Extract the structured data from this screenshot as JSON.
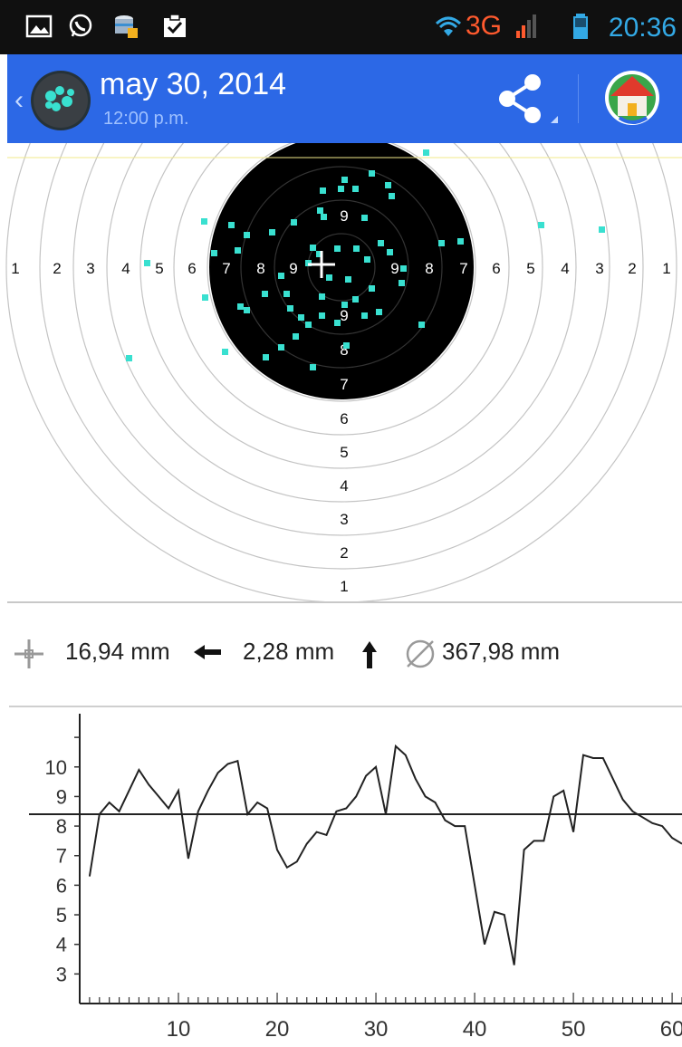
{
  "status_bar": {
    "network": "3G",
    "time": "20:36",
    "icons": [
      "gallery-icon",
      "whatsapp-icon",
      "storage-icon",
      "clipboard-check-icon",
      "wifi-icon",
      "signal-icon",
      "battery-icon"
    ]
  },
  "app_bar": {
    "title": "may 30, 2014",
    "subtitle": "12:00 p.m.",
    "accent_color": "#2c68e6",
    "actions": [
      "share-icon",
      "home-icon"
    ]
  },
  "target": {
    "ring_numbers_left": [
      "1",
      "2",
      "3",
      "4",
      "5",
      "6",
      "7",
      "8",
      "9"
    ],
    "ring_numbers_right": [
      "9",
      "8",
      "7",
      "6",
      "5",
      "4",
      "3",
      "2",
      "1"
    ],
    "ring_numbers_top": [
      "9"
    ],
    "ring_numbers_bottom": [
      "9",
      "8",
      "7",
      "6",
      "5",
      "4",
      "3",
      "2",
      "1"
    ],
    "shot_color": "#39e0d0",
    "center_mark": "crosshair-icon"
  },
  "stats": {
    "offset_value": "16,94 mm",
    "offset_direction": "left-arrow-icon",
    "vertical_value": "2,28 mm",
    "vertical_direction": "up-arrow-icon",
    "diameter_value": "367,98 mm",
    "offset_icon": "crosshair-icon",
    "diameter_icon": "diameter-icon"
  },
  "chart_data": {
    "type": "line",
    "title": "",
    "xlabel": "",
    "ylabel": "",
    "x_ticks": [
      "10",
      "20",
      "30",
      "40",
      "50",
      "60"
    ],
    "y_ticks": [
      "3",
      "4",
      "5",
      "6",
      "7",
      "8",
      "9",
      "10"
    ],
    "xlim": [
      0,
      61
    ],
    "ylim": [
      2,
      11.8
    ],
    "reference_line": 8.4,
    "x": [
      1,
      2,
      3,
      4,
      5,
      6,
      7,
      8,
      9,
      10,
      11,
      12,
      13,
      14,
      15,
      16,
      17,
      18,
      19,
      20,
      21,
      22,
      23,
      24,
      25,
      26,
      27,
      28,
      29,
      30,
      31,
      32,
      33,
      34,
      35,
      36,
      37,
      38,
      39,
      40,
      41,
      42,
      43,
      44,
      45,
      46,
      47,
      48,
      49,
      50,
      51,
      52,
      53,
      54,
      55,
      56,
      57,
      58,
      59,
      60,
      61
    ],
    "values": [
      6.3,
      8.4,
      8.8,
      8.5,
      9.2,
      9.9,
      9.4,
      9.0,
      8.6,
      9.2,
      6.9,
      8.5,
      9.2,
      9.8,
      10.1,
      10.2,
      8.4,
      8.8,
      8.6,
      7.2,
      6.6,
      6.8,
      7.4,
      7.8,
      7.7,
      8.5,
      8.6,
      9.0,
      9.7,
      10.0,
      8.4,
      10.7,
      10.4,
      9.6,
      9.0,
      8.8,
      8.2,
      8.0,
      8.0,
      6.0,
      4.0,
      5.1,
      5.0,
      3.3,
      7.2,
      7.5,
      7.5,
      9.0,
      9.2,
      7.8,
      10.4,
      10.3,
      10.3,
      9.6,
      8.9,
      8.5,
      8.3,
      8.1,
      8.0,
      7.6,
      7.4
    ]
  }
}
